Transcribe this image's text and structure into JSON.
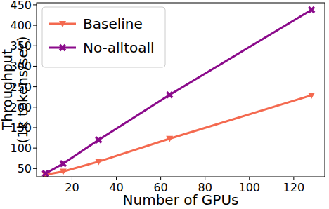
{
  "chart_data": {
    "type": "line",
    "x_label": "Number of GPUs",
    "y_label": "Throughput\n(1k tokens/sec)",
    "x": [
      8,
      16,
      32,
      64,
      128
    ],
    "series": [
      {
        "name": "Baseline",
        "color": "#f4694f",
        "marker": "triangle_down",
        "values": [
          35,
          43,
          67,
          123,
          229
        ]
      },
      {
        "name": "No-alltoall",
        "color": "#8b0a8b",
        "marker": "x",
        "values": [
          38,
          62,
          120,
          230,
          438
        ]
      }
    ],
    "xlim": [
      4,
      134
    ],
    "xticks": [
      20,
      40,
      60,
      80,
      100,
      120
    ],
    "ylim": [
      30,
      455
    ],
    "yticks": [
      50,
      100,
      150,
      200,
      250,
      300,
      350,
      400,
      450
    ],
    "grid": false,
    "legend": "upper left"
  }
}
